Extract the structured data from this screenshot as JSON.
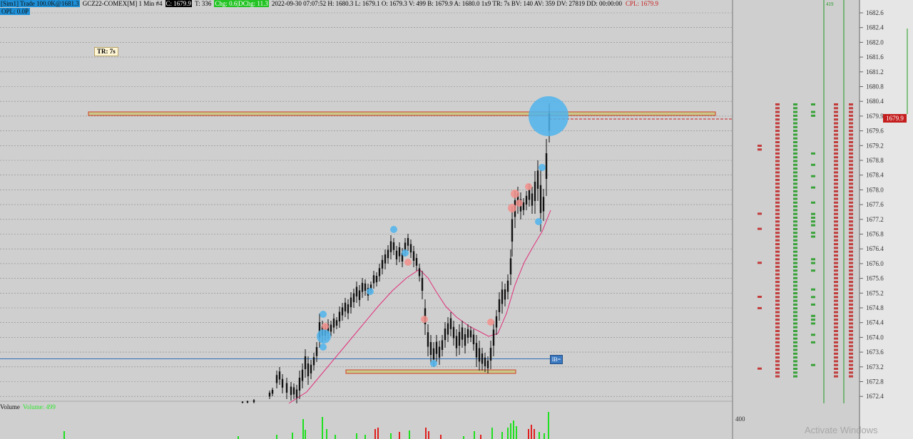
{
  "header": {
    "trade": "[Sim1]  Trade  100.0K@1681.3",
    "symbol": "GCZ22-COMEX[M]  1 Min  #4",
    "close": "C: 1679.9",
    "trades": "T: 336",
    "chg": "Chg: 0.6|DChg: 11.3",
    "stats": "2022-09-30 07:07:52 H: 1680.3 L: 1679.1 O: 1679.3 V: 499 B: 1679.9 A: 1680.0 1x9 TR: 7s BV: 140 AV: 359 DV: 27819 DD: 00:00:00",
    "cpl": "CPL: 1679.9",
    "opl": "OPL: 0.0P"
  },
  "tr_box": "TR: 7s",
  "volume_label": "Volume",
  "volume_value": "Volume: 499",
  "volume_axis": "400",
  "ib_button": "IB=",
  "current_price": "1679.9",
  "top_green": "419",
  "watermark": "Activate Windows",
  "colors": {
    "up": "#111111",
    "ma": "#e0307a",
    "blue_bubble": "#4fb4ec",
    "red_bubble": "#f2908c",
    "zone": "#c9c98a",
    "zone_border": "#d0402a",
    "vol_green": "#1ee01e",
    "vol_red": "#e01e1e",
    "ladder_red": "#c02222",
    "ladder_green": "#1f9a1f"
  },
  "chart_data": {
    "type": "candlestick",
    "ylim": [
      1672.2,
      1682.8
    ],
    "y_ticks": [
      1682.6,
      1682.4,
      1682.0,
      1681.6,
      1681.2,
      1680.8,
      1680.4,
      1679.9,
      1679.6,
      1679.2,
      1678.8,
      1678.4,
      1678.0,
      1677.6,
      1677.2,
      1676.8,
      1676.4,
      1676.0,
      1675.6,
      1675.2,
      1674.8,
      1674.4,
      1674.0,
      1673.6,
      1673.2,
      1672.8,
      1672.4
    ],
    "zones": [
      {
        "from": 1679.95,
        "to": 1680.05,
        "x0": 0,
        "x1": 1
      },
      {
        "from": 1673.05,
        "to": 1673.15,
        "x0": 0,
        "x1": 1
      }
    ],
    "blue_level": 1673.5,
    "cpl_level": 1679.9
  }
}
